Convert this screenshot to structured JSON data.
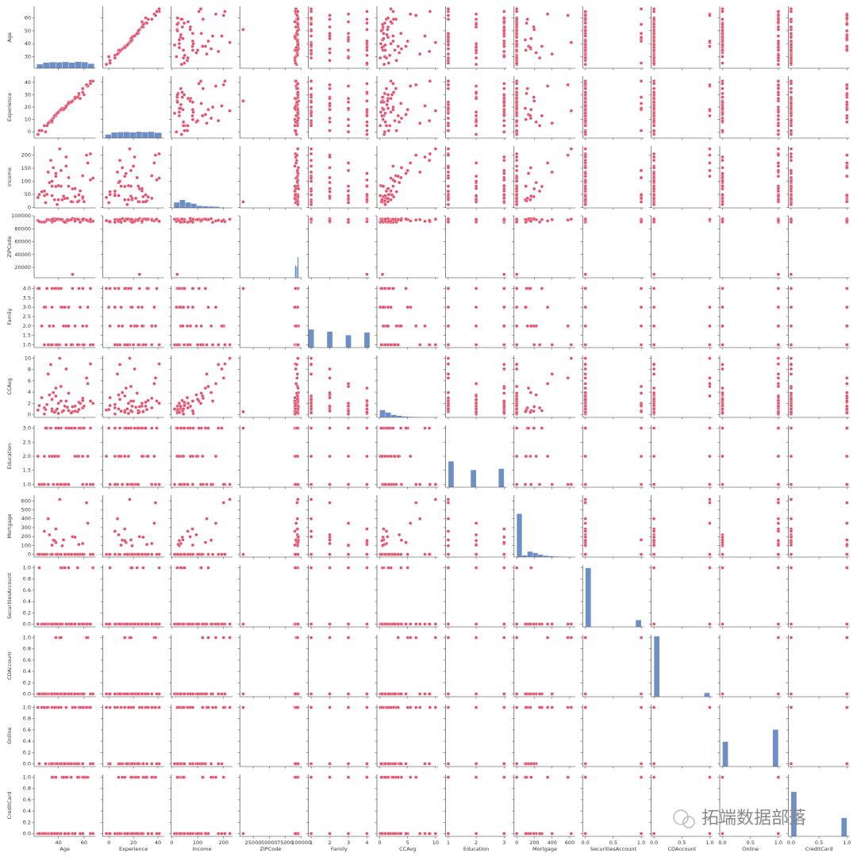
{
  "chart_data": {
    "type": "pairplot",
    "point_color": "#e0506c",
    "hist_color": "#6d8fc6",
    "watermark": "拓端数据部落",
    "axes": [
      {
        "name": "Age",
        "lim": [
          21,
          69
        ],
        "xticks": [
          40,
          60
        ],
        "yticks": [
          30,
          40,
          50,
          60
        ]
      },
      {
        "name": "Experience",
        "lim": [
          -5,
          45
        ],
        "xticks": [
          0,
          20,
          40
        ],
        "yticks": [
          0,
          10,
          20,
          30,
          40
        ]
      },
      {
        "name": "Income",
        "lim": [
          -2,
          235
        ],
        "xticks": [
          0,
          100,
          200
        ],
        "yticks": [
          0,
          50,
          100,
          150,
          200
        ]
      },
      {
        "name": "ZIPCode",
        "lim": [
          4000,
          100000
        ],
        "xticks": [
          25000,
          50000,
          75000,
          100000
        ],
        "yticks": [
          20000,
          40000,
          60000,
          80000,
          100000
        ]
      },
      {
        "name": "Family",
        "lim": [
          0.85,
          4.15
        ],
        "xticks": [
          1,
          2,
          3,
          4
        ],
        "yticks": [
          {
            "value": 1,
            "label": "1.0"
          },
          1.5,
          {
            "value": 2,
            "label": "2.0"
          },
          2.5,
          {
            "value": 3,
            "label": "3.0"
          },
          3.5,
          {
            "value": 4,
            "label": "4.0"
          }
        ]
      },
      {
        "name": "CCAvg",
        "lim": [
          -0.5,
          10.5
        ],
        "xticks": [
          0,
          5,
          10
        ],
        "yticks": [
          0,
          2,
          4,
          6,
          8,
          10
        ]
      },
      {
        "name": "Education",
        "lim": [
          0.9,
          3.1
        ],
        "xticks": [
          1,
          2,
          3
        ],
        "yticks": [
          {
            "value": 1,
            "label": "1.0"
          },
          1.5,
          {
            "value": 2,
            "label": "2.0"
          },
          2.5,
          {
            "value": 3,
            "label": "3.0"
          }
        ]
      },
      {
        "name": "Mortgage",
        "lim": [
          -30,
          665
        ],
        "xticks": [
          0,
          200,
          400,
          600
        ],
        "yticks": [
          0,
          100,
          200,
          300,
          400,
          500,
          600
        ]
      },
      {
        "name": "SecuritiesAccount",
        "lim": [
          -0.05,
          1.05
        ],
        "xticks": [
          {
            "value": 0,
            "label": "0.0"
          },
          0.5,
          {
            "value": 1,
            "label": "1.0"
          }
        ],
        "yticks": [
          {
            "value": 0,
            "label": "0.0"
          },
          0.2,
          0.4,
          0.6,
          0.8,
          {
            "value": 1,
            "label": "1.0"
          }
        ]
      },
      {
        "name": "CDAccount",
        "lim": [
          -0.05,
          1.05
        ],
        "xticks": [
          {
            "value": 0,
            "label": "0.0"
          },
          0.5,
          {
            "value": 1,
            "label": "1.0"
          }
        ],
        "yticks": [
          {
            "value": 0,
            "label": "0.0"
          },
          0.2,
          0.4,
          0.6,
          0.8,
          {
            "value": 1,
            "label": "1.0"
          }
        ]
      },
      {
        "name": "Online",
        "lim": [
          -0.05,
          1.05
        ],
        "xticks": [
          {
            "value": 0,
            "label": "0.0"
          },
          0.5,
          {
            "value": 1,
            "label": "1.0"
          }
        ],
        "yticks": [
          {
            "value": 0,
            "label": "0.0"
          },
          0.2,
          0.4,
          0.6,
          0.8,
          {
            "value": 1,
            "label": "1.0"
          }
        ]
      },
      {
        "name": "CreditCard",
        "lim": [
          -0.05,
          1.05
        ],
        "xticks": [
          {
            "value": 0,
            "label": "0.0"
          },
          0.5,
          {
            "value": 1,
            "label": "1.0"
          }
        ],
        "yticks": [
          {
            "value": 0,
            "label": "0.0"
          },
          0.2,
          0.4,
          0.6,
          0.8,
          {
            "value": 1,
            "label": "1.0"
          }
        ]
      }
    ],
    "histograms": [
      {
        "bins": [
          23,
          28,
          33,
          38,
          43,
          48,
          53,
          58,
          63,
          68
        ],
        "counts": [
          400,
          550,
          600,
          580,
          620,
          560,
          640,
          600,
          450
        ],
        "ylim": [
          0,
          6000
        ]
      },
      {
        "bins": [
          -3,
          2,
          7,
          12,
          17,
          22,
          27,
          32,
          37,
          43
        ],
        "counts": [
          350,
          560,
          580,
          600,
          560,
          620,
          580,
          620,
          530
        ],
        "ylim": [
          0,
          6000
        ]
      },
      {
        "bins": [
          8,
          30,
          52,
          74,
          96,
          118,
          140,
          162,
          184,
          206,
          228
        ],
        "counts": [
          900,
          1300,
          900,
          700,
          350,
          300,
          250,
          200,
          80,
          20
        ],
        "ylim": [
          0,
          10000
        ]
      },
      {
        "bins": [
          9000,
          90000,
          92000,
          94000,
          96000
        ],
        "counts": [
          1,
          1200,
          1100,
          2000,
          1700
        ],
        "ylim": [
          0,
          6000
        ]
      },
      {
        "bins": [
          0.85,
          1.15,
          1.85,
          2.15,
          2.85,
          3.15,
          3.85,
          4.15
        ],
        "counts": [
          1472,
          0,
          1296,
          0,
          1010,
          0,
          1222
        ],
        "ylim": [
          0,
          5000
        ]
      },
      {
        "bins": [
          0,
          1,
          2,
          3,
          4,
          5,
          6,
          7,
          8,
          9,
          10
        ],
        "counts": [
          1900,
          1300,
          700,
          450,
          260,
          190,
          110,
          60,
          40,
          20
        ],
        "ylim": [
          0,
          16000
        ]
      },
      {
        "bins": [
          1,
          1.2,
          1.8,
          2,
          2.8,
          3
        ],
        "counts": [
          2096,
          0,
          1403,
          0,
          1501
        ],
        "ylim": [
          0,
          5000
        ]
      },
      {
        "bins": [
          0,
          60,
          120,
          180,
          240,
          300,
          360,
          420,
          480,
          540,
          600,
          660
        ],
        "counts": [
          3500,
          150,
          450,
          350,
          200,
          120,
          80,
          50,
          30,
          20,
          10
        ],
        "ylim": [
          0,
          5000
        ]
      },
      {
        "bins": [
          0,
          0.1,
          0.9,
          1
        ],
        "counts": [
          4478,
          0,
          522
        ],
        "ylim": [
          0,
          4700
        ]
      },
      {
        "bins": [
          0,
          0.1,
          0.9,
          1
        ],
        "counts": [
          4698,
          0,
          302
        ],
        "ylim": [
          0,
          4800
        ]
      },
      {
        "bins": [
          0,
          0.1,
          0.9,
          1
        ],
        "counts": [
          2016,
          0,
          2984
        ],
        "ylim": [
          0,
          5000
        ]
      },
      {
        "bins": [
          0,
          0.1,
          0.9,
          1
        ],
        "counts": [
          3530,
          0,
          1470
        ],
        "ylim": [
          0,
          4900
        ]
      }
    ],
    "records": [
      [
        25,
        1,
        49,
        91107,
        4,
        1.6,
        1,
        0,
        1,
        0,
        0,
        0
      ],
      [
        45,
        19,
        34,
        90089,
        3,
        1.5,
        1,
        0,
        1,
        0,
        0,
        0
      ],
      [
        39,
        15,
        11,
        94720,
        1,
        1.0,
        1,
        0,
        0,
        0,
        0,
        0
      ],
      [
        35,
        9,
        100,
        94112,
        1,
        2.7,
        2,
        0,
        0,
        0,
        0,
        0
      ],
      [
        35,
        8,
        45,
        91330,
        4,
        1.0,
        2,
        0,
        0,
        0,
        0,
        1
      ],
      [
        37,
        13,
        29,
        92121,
        4,
        0.4,
        2,
        155,
        0,
        0,
        1,
        0
      ],
      [
        53,
        27,
        72,
        91711,
        2,
        1.5,
        2,
        0,
        0,
        0,
        1,
        0
      ],
      [
        50,
        24,
        22,
        93943,
        1,
        0.3,
        3,
        0,
        0,
        0,
        0,
        1
      ],
      [
        35,
        10,
        81,
        90089,
        3,
        0.6,
        2,
        104,
        0,
        0,
        1,
        0
      ],
      [
        34,
        9,
        180,
        93023,
        1,
        8.9,
        3,
        0,
        0,
        0,
        0,
        0
      ],
      [
        65,
        39,
        105,
        94710,
        4,
        2.4,
        3,
        0,
        0,
        0,
        0,
        0
      ],
      [
        29,
        5,
        45,
        90277,
        3,
        0.1,
        2,
        0,
        0,
        0,
        1,
        0
      ],
      [
        48,
        23,
        114,
        93106,
        2,
        3.8,
        3,
        0,
        1,
        0,
        0,
        0
      ],
      [
        59,
        32,
        40,
        94920,
        4,
        2.5,
        2,
        0,
        0,
        0,
        1,
        0
      ],
      [
        67,
        41,
        112,
        91741,
        1,
        2.0,
        1,
        0,
        1,
        0,
        0,
        0
      ],
      [
        60,
        30,
        22,
        95054,
        1,
        1.5,
        3,
        0,
        0,
        0,
        1,
        1
      ],
      [
        38,
        14,
        130,
        95010,
        4,
        4.7,
        3,
        134,
        0,
        0,
        0,
        0
      ],
      [
        42,
        18,
        81,
        94305,
        4,
        2.4,
        1,
        0,
        0,
        0,
        0,
        0
      ],
      [
        46,
        21,
        193,
        91604,
        2,
        8.1,
        3,
        0,
        0,
        0,
        0,
        0
      ],
      [
        55,
        28,
        21,
        94720,
        1,
        0.5,
        2,
        0,
        1,
        0,
        0,
        1
      ],
      [
        56,
        31,
        25,
        94015,
        4,
        0.9,
        2,
        111,
        0,
        0,
        0,
        1
      ],
      [
        57,
        27,
        63,
        90095,
        3,
        2.0,
        3,
        0,
        0,
        0,
        1,
        0
      ],
      [
        29,
        5,
        62,
        90277,
        1,
        1.2,
        1,
        260,
        0,
        0,
        1,
        0
      ],
      [
        44,
        18,
        43,
        91320,
        2,
        0.7,
        1,
        163,
        1,
        0,
        0,
        1
      ],
      [
        36,
        11,
        152,
        95521,
        2,
        3.9,
        1,
        159,
        0,
        0,
        0,
        1
      ],
      [
        43,
        19,
        29,
        94305,
        3,
        0.5,
        1,
        97,
        0,
        0,
        0,
        1
      ],
      [
        40,
        16,
        83,
        95064,
        4,
        0.2,
        3,
        0,
        0,
        0,
        0,
        0
      ],
      [
        46,
        20,
        158,
        90064,
        1,
        2.4,
        1,
        0,
        0,
        0,
        1,
        1
      ],
      [
        56,
        30,
        48,
        94539,
        1,
        2.2,
        3,
        0,
        0,
        0,
        1,
        1
      ],
      [
        38,
        13,
        119,
        94104,
        1,
        3.3,
        2,
        0,
        0,
        1,
        1,
        1
      ],
      [
        59,
        35,
        35,
        93106,
        2,
        1.2,
        3,
        122,
        0,
        0,
        1,
        0
      ],
      [
        40,
        16,
        29,
        94117,
        1,
        2.0,
        2,
        0,
        0,
        0,
        1,
        0
      ],
      [
        53,
        28,
        41,
        94801,
        2,
        0.6,
        3,
        193,
        0,
        0,
        0,
        0
      ],
      [
        30,
        0,
        18,
        91330,
        3,
        0.9,
        3,
        0,
        0,
        0,
        0,
        0
      ],
      [
        31,
        5,
        50,
        94035,
        4,
        1.8,
        3,
        0,
        0,
        0,
        1,
        0
      ],
      [
        48,
        24,
        81,
        92647,
        3,
        0.7,
        1,
        0,
        0,
        0,
        0,
        0
      ],
      [
        59,
        35,
        121,
        94720,
        1,
        2.9,
        1,
        0,
        0,
        0,
        0,
        1
      ],
      [
        51,
        25,
        71,
        95814,
        1,
        1.4,
        3,
        198,
        0,
        0,
        0,
        0
      ],
      [
        42,
        18,
        141,
        94114,
        3,
        5.0,
        3,
        0,
        1,
        1,
        1,
        0
      ],
      [
        38,
        13,
        80,
        94115,
        4,
        0.7,
        3,
        285,
        0,
        0,
        1,
        0
      ],
      [
        47,
        22,
        35,
        94304,
        2,
        1.3,
        1,
        0,
        0,
        0,
        0,
        1
      ],
      [
        32,
        7,
        135,
        94025,
        1,
        7.2,
        1,
        400,
        0,
        0,
        1,
        0
      ],
      [
        62,
        38,
        200,
        93555,
        2,
        6.5,
        1,
        580,
        0,
        1,
        1,
        1
      ],
      [
        27,
        1,
        60,
        90245,
        2,
        3.0,
        1,
        0,
        0,
        0,
        1,
        0
      ],
      [
        65,
        41,
        205,
        91006,
        1,
        9.0,
        1,
        0,
        0,
        0,
        1,
        0
      ],
      [
        41,
        17,
        224,
        94710,
        1,
        10.0,
        1,
        617,
        0,
        1,
        1,
        0
      ],
      [
        51,
        25,
        21,
        9307,
        4,
        0.5,
        3,
        0,
        0,
        0,
        1,
        0
      ],
      [
        24,
        -2,
        38,
        92612,
        4,
        0.8,
        2,
        0,
        0,
        0,
        1,
        0
      ],
      [
        63,
        37,
        170,
        92093,
        3,
        5.5,
        2,
        350,
        0,
        1,
        1,
        1
      ],
      [
        33,
        8,
        95,
        94022,
        2,
        3.5,
        2,
        220,
        0,
        0,
        0,
        0
      ]
    ]
  }
}
